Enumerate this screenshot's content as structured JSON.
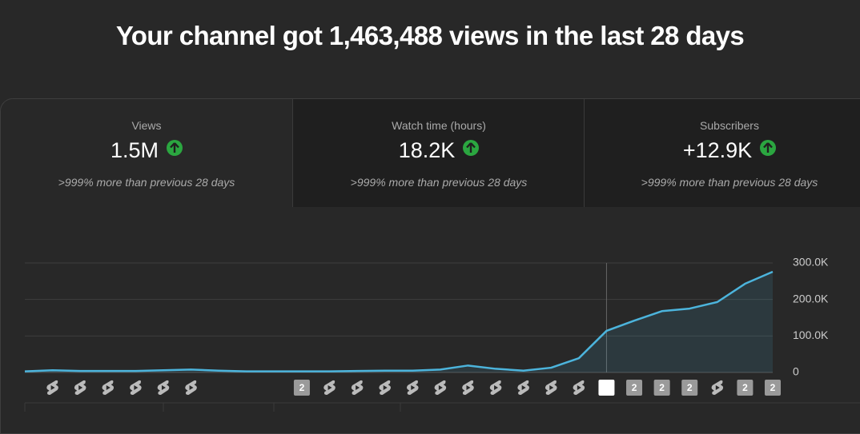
{
  "header": {
    "title": "Your channel got 1,463,488 views in the last 28 days"
  },
  "tabs": [
    {
      "label": "Views",
      "value": "1.5M",
      "comparison": ">999% more than previous 28 days"
    },
    {
      "label": "Watch time (hours)",
      "value": "18.2K",
      "comparison": ">999% more than previous 28 days"
    },
    {
      "label": "Subscribers",
      "value": "+12.9K",
      "comparison": ">999% more than previous 28 days"
    }
  ],
  "chart_data": {
    "type": "area",
    "values": [
      3000,
      6000,
      4000,
      4000,
      4000,
      6000,
      8000,
      5000,
      3000,
      3000,
      3000,
      3000,
      4000,
      5000,
      5000,
      8000,
      19000,
      10000,
      5000,
      13000,
      39000,
      114000,
      142000,
      168000,
      175000,
      193000,
      243000,
      276000
    ],
    "color": "#4cb4dc",
    "ylim": [
      0,
      300000
    ],
    "yticks": [
      0,
      {
        "value": 100000,
        "label": "100.0K"
      },
      {
        "value": 200000,
        "label": "200.0K"
      },
      {
        "value": 300000,
        "label": "300.0K"
      }
    ],
    "grid": true,
    "marker_labels": [
      null,
      null,
      null,
      null,
      null,
      null,
      null,
      null,
      null,
      null,
      "2",
      null,
      null,
      null,
      null,
      null,
      null,
      null,
      null,
      null,
      null,
      null,
      "2",
      "2",
      "2",
      null,
      "2",
      "2"
    ]
  }
}
